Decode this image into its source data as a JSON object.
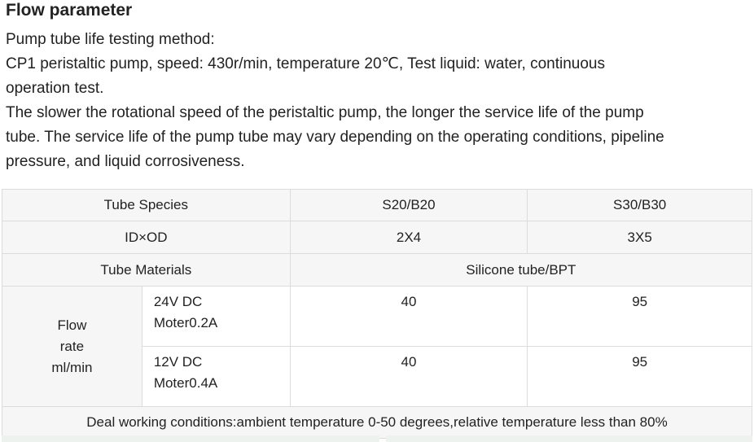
{
  "heading": "Flow parameter",
  "paragraphs": {
    "line1": "Pump tube life testing method:",
    "line2": "CP1 peristaltic pump, speed: 430r/min,  temperature 20℃, Test liquid: water, continuous",
    "line3": "operation test.",
    "line4": "The slower the rotational speed of the peristaltic pump, the longer the service life of the pump",
    "line5": "tube. The service life of the pump tube may vary depending on the operating conditions, pipeline",
    "line6": "pressure, and liquid corrosiveness."
  },
  "table": {
    "header": {
      "label": "Tube Species",
      "col1": "S20/B20",
      "col2": "S30/B30"
    },
    "id_od": {
      "label": "ID×OD",
      "col1": "2X4",
      "col2": "3X5"
    },
    "materials": {
      "label": "Tube Materials",
      "value": "Silicone tube/BPT"
    },
    "flow": {
      "label_line1": "Flow",
      "label_line2": "rate",
      "label_line3": "ml/min",
      "rows": [
        {
          "volt": "24V DC",
          "motor": "Moter0.2A",
          "col1": "40",
          "col2": "95"
        },
        {
          "volt": "12V DC",
          "motor": "Moter0.4A",
          "col1": "40",
          "col2": "95"
        }
      ]
    },
    "footer": "Deal working conditions:ambient temperature 0-50 degrees,relative temperature less than 80%"
  }
}
